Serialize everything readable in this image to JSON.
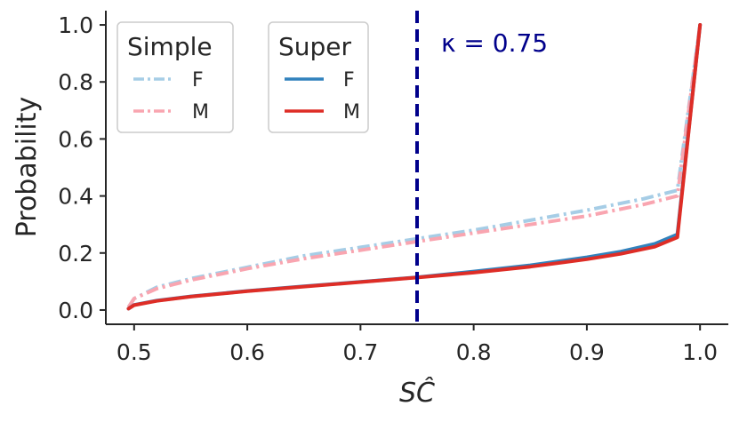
{
  "chart_data": {
    "type": "line",
    "xlabel": "SĈ",
    "ylabel": "Probability",
    "xlim": [
      0.475,
      1.025
    ],
    "ylim": [
      -0.05,
      1.05
    ],
    "xticks": [
      "0.5",
      "0.6",
      "0.7",
      "0.8",
      "0.9",
      "1.0"
    ],
    "yticks": [
      "0.0",
      "0.2",
      "0.4",
      "0.6",
      "0.8",
      "1.0"
    ],
    "grid": false,
    "legend": {
      "placement": "top-left",
      "groups": [
        {
          "title": "Simple",
          "entries": [
            "F",
            "M"
          ]
        },
        {
          "title": "Super",
          "entries": [
            "F",
            "M"
          ]
        }
      ]
    },
    "annotation": {
      "x": 0.75,
      "label": "κ = 0.75",
      "color": "#00008b"
    },
    "series": [
      {
        "group": "Simple",
        "name": "F",
        "color": "#a6cde6",
        "style": "dashdot",
        "x": [
          0.495,
          0.5,
          0.52,
          0.55,
          0.6,
          0.65,
          0.7,
          0.75,
          0.8,
          0.85,
          0.9,
          0.95,
          0.98,
          1.0
        ],
        "y": [
          0.01,
          0.04,
          0.08,
          0.11,
          0.15,
          0.19,
          0.22,
          0.25,
          0.28,
          0.315,
          0.35,
          0.39,
          0.42,
          1.0
        ]
      },
      {
        "group": "Simple",
        "name": "M",
        "color": "#f9a5b0",
        "style": "dashdot",
        "x": [
          0.495,
          0.5,
          0.52,
          0.55,
          0.6,
          0.65,
          0.7,
          0.75,
          0.8,
          0.85,
          0.9,
          0.95,
          0.98,
          1.0
        ],
        "y": [
          0.01,
          0.04,
          0.075,
          0.105,
          0.145,
          0.18,
          0.21,
          0.24,
          0.27,
          0.3,
          0.33,
          0.37,
          0.4,
          1.0
        ]
      },
      {
        "group": "Super",
        "name": "F",
        "color": "#3182bd",
        "style": "solid",
        "x": [
          0.495,
          0.5,
          0.52,
          0.55,
          0.6,
          0.65,
          0.7,
          0.75,
          0.8,
          0.85,
          0.9,
          0.93,
          0.96,
          0.98,
          1.0
        ],
        "y": [
          0.005,
          0.018,
          0.033,
          0.048,
          0.067,
          0.083,
          0.099,
          0.115,
          0.135,
          0.157,
          0.185,
          0.205,
          0.232,
          0.265,
          1.0
        ]
      },
      {
        "group": "Super",
        "name": "M",
        "color": "#de2d26",
        "style": "solid",
        "x": [
          0.495,
          0.5,
          0.52,
          0.55,
          0.6,
          0.65,
          0.7,
          0.75,
          0.8,
          0.85,
          0.9,
          0.93,
          0.96,
          0.98,
          1.0
        ],
        "y": [
          0.005,
          0.017,
          0.032,
          0.047,
          0.066,
          0.082,
          0.098,
          0.114,
          0.131,
          0.152,
          0.178,
          0.197,
          0.222,
          0.255,
          1.0
        ]
      }
    ]
  }
}
